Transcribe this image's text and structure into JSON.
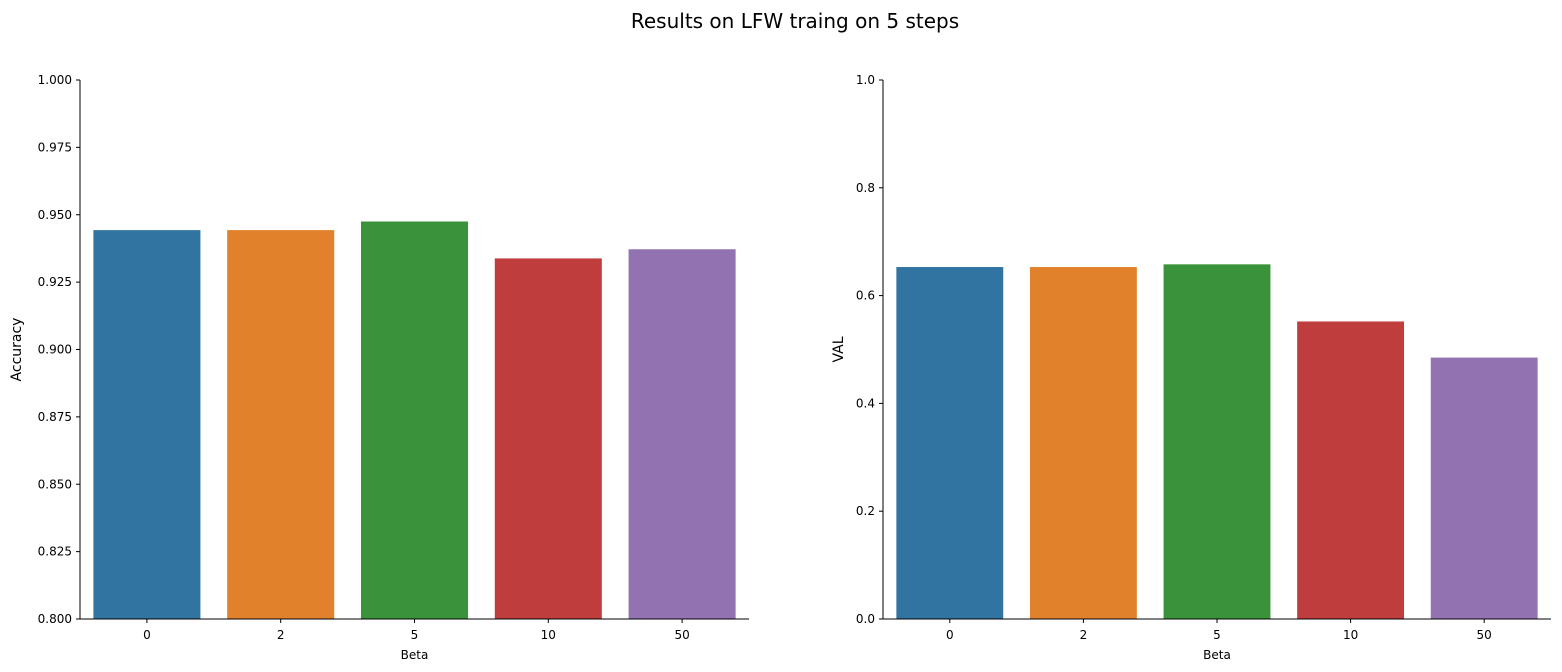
{
  "figure": {
    "title": "Results on LFW traing on 5 steps"
  },
  "chart_data": [
    {
      "type": "bar",
      "categories": [
        "0",
        "2",
        "5",
        "10",
        "50"
      ],
      "values": [
        0.9443,
        0.9443,
        0.9475,
        0.9338,
        0.9372
      ],
      "colors": [
        "#3274a1",
        "#e1812c",
        "#3a923a",
        "#c03d3e",
        "#9372b2"
      ],
      "xlabel": "Beta",
      "ylabel": "Accuracy",
      "ylim": [
        0.8,
        1.0
      ],
      "yticks": [
        0.8,
        0.825,
        0.85,
        0.875,
        0.9,
        0.925,
        0.95,
        0.975,
        1.0
      ],
      "ytick_labels": [
        "0.800",
        "0.825",
        "0.850",
        "0.875",
        "0.900",
        "0.925",
        "0.950",
        "0.975",
        "1.000"
      ],
      "grid": false,
      "legend": "none"
    },
    {
      "type": "bar",
      "categories": [
        "0",
        "2",
        "5",
        "10",
        "50"
      ],
      "values": [
        0.653,
        0.653,
        0.658,
        0.552,
        0.485
      ],
      "colors": [
        "#3274a1",
        "#e1812c",
        "#3a923a",
        "#c03d3e",
        "#9372b2"
      ],
      "xlabel": "Beta",
      "ylabel": "VAL",
      "ylim": [
        0.0,
        1.0
      ],
      "yticks": [
        0.0,
        0.2,
        0.4,
        0.6,
        0.8,
        1.0
      ],
      "ytick_labels": [
        "0.0",
        "0.2",
        "0.4",
        "0.6",
        "0.8",
        "1.0"
      ],
      "grid": false,
      "legend": "none"
    }
  ]
}
